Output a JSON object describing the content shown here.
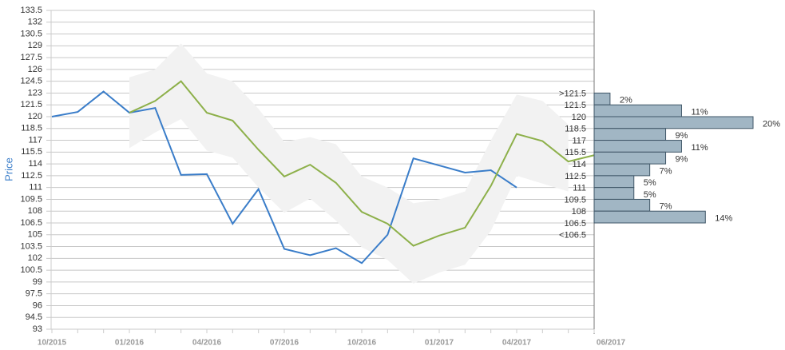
{
  "chart_data": {
    "type": "line",
    "y_label": "Price",
    "categories": [
      "10/2015",
      null,
      null,
      "01/2016",
      null,
      null,
      "04/2016",
      null,
      null,
      "07/2016",
      null,
      null,
      "10/2016",
      null,
      null,
      "01/2017",
      null,
      null,
      "04/2017",
      null,
      null,
      null
    ],
    "x_end_label": "06/2017",
    "ylim": [
      93,
      133.5
    ],
    "yticks": [
      93,
      94.5,
      96,
      97.5,
      99,
      100.5,
      102,
      103.5,
      105,
      106.5,
      108,
      109.5,
      111,
      112.5,
      114,
      115.5,
      117,
      118.5,
      120,
      121.5,
      123,
      124.5,
      126,
      127.5,
      129,
      130.5,
      132,
      133.5
    ],
    "grid": true,
    "band": {
      "color": "#f2f2f2",
      "upper": [
        null,
        null,
        null,
        125,
        126,
        129.3,
        125.5,
        124.5,
        121,
        116.8,
        117.4,
        116.5,
        112.4,
        111,
        109,
        109.5,
        110.5,
        117,
        122.8,
        122,
        119,
        null
      ],
      "lower": [
        null,
        null,
        null,
        116,
        118,
        119.7,
        115.7,
        114.8,
        111,
        107.8,
        109.6,
        106.8,
        103.4,
        101.8,
        98.8,
        100.2,
        101.2,
        105.5,
        112.5,
        111.5,
        110.5,
        null
      ]
    },
    "series": [
      {
        "color": "#3a7dc9",
        "values": [
          120,
          120.6,
          123.2,
          120.5,
          121.1,
          112.6,
          112.7,
          106.4,
          110.8,
          103.2,
          102.4,
          103.3,
          101.4,
          105,
          114.7,
          113.8,
          112.9,
          113.2,
          111,
          null,
          null,
          null
        ]
      },
      {
        "color": "#8db04a",
        "values": [
          null,
          null,
          null,
          120.5,
          122,
          124.5,
          120.5,
          119.5,
          115.8,
          112.4,
          113.9,
          111.6,
          107.9,
          106.4,
          103.6,
          104.9,
          105.9,
          111.2,
          117.8,
          116.9,
          114.3,
          115.1
        ]
      }
    ],
    "histogram": {
      "type": "histogram",
      "color": "#a1b6c4",
      "edge_color": "#3f5667",
      "bins": [
        123,
        121.5,
        120,
        118.5,
        117,
        115.5,
        114,
        112.5,
        111,
        109.5,
        108,
        106.5
      ],
      "values": [
        2,
        11,
        20,
        9,
        11,
        9,
        7,
        5,
        5,
        7,
        14
      ],
      "value_labels": [
        "2%",
        "11%",
        "20%",
        "9%",
        "11%",
        "9%",
        "7%",
        "5%",
        "5%",
        "7%",
        "14%"
      ],
      "xlim": [
        0,
        20
      ],
      "bin_labels": [
        ">121.5",
        "121.5",
        "120",
        "118.5",
        "117",
        "115.5",
        "114",
        "112.5",
        "111",
        "109.5",
        "108",
        "106.5",
        "<106.5"
      ]
    }
  }
}
